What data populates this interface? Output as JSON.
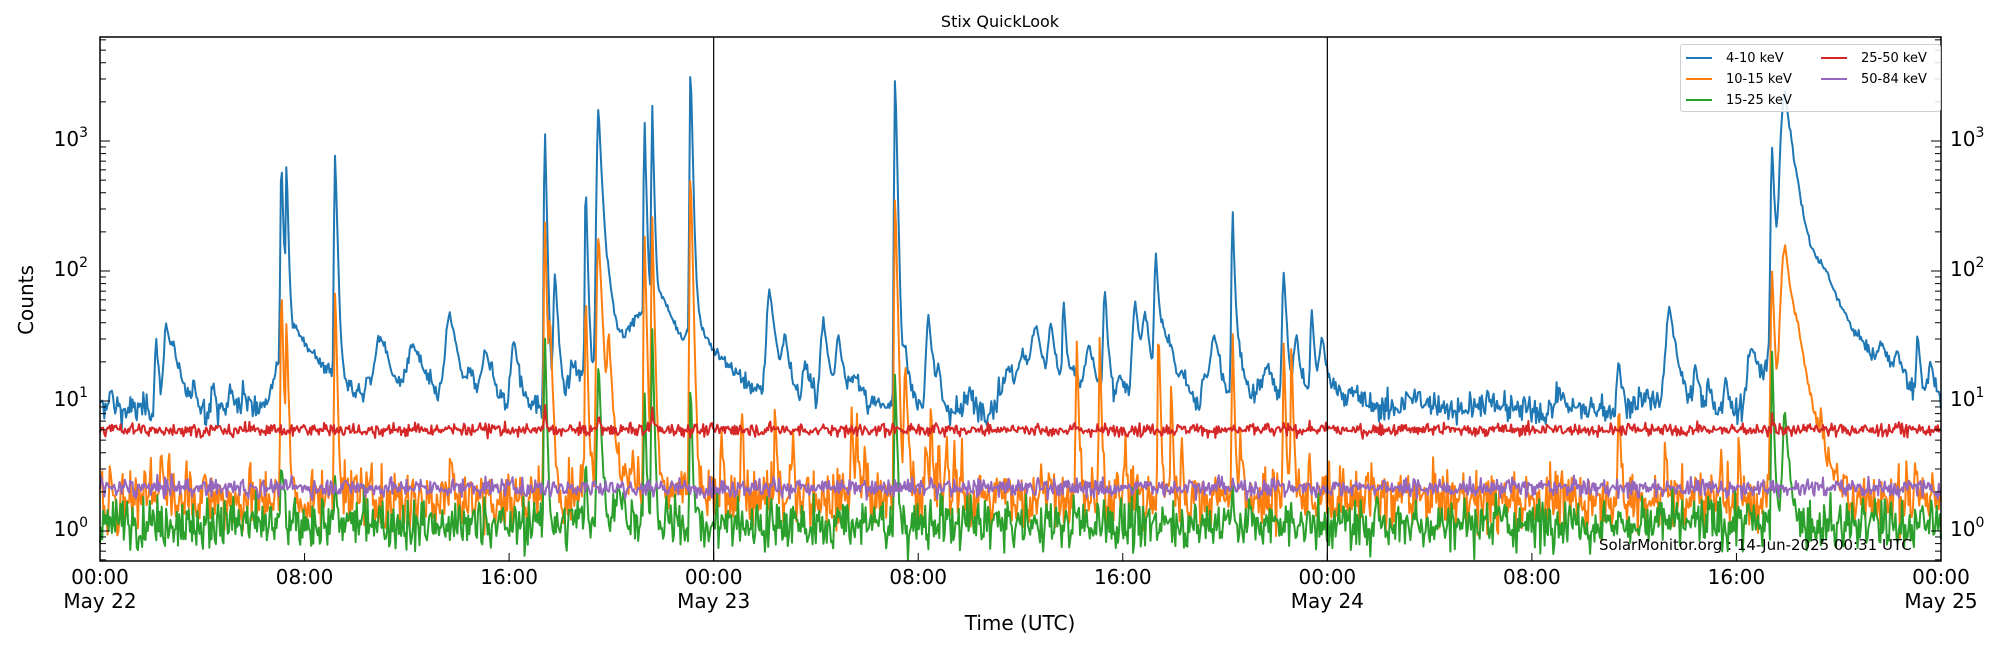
{
  "figure": {
    "title": "Stix QuickLook",
    "ylabel": "Counts",
    "xlabel": "Time (UTC)",
    "stamp": "SolarMonitor.org : 14-Jun-2025 00:31 UTC"
  },
  "yticks": [
    {
      "base": "10",
      "exp": "3",
      "value": 1000
    },
    {
      "base": "10",
      "exp": "2",
      "value": 100
    },
    {
      "base": "10",
      "exp": "1",
      "value": 10
    },
    {
      "base": "10",
      "exp": "0",
      "value": 1
    }
  ],
  "xticks": [
    {
      "time": "00:00",
      "date": "May 22",
      "hour": 0
    },
    {
      "time": "08:00",
      "date": "",
      "hour": 8
    },
    {
      "time": "16:00",
      "date": "",
      "hour": 16
    },
    {
      "time": "00:00",
      "date": "May 23",
      "hour": 24
    },
    {
      "time": "08:00",
      "date": "",
      "hour": 32
    },
    {
      "time": "16:00",
      "date": "",
      "hour": 40
    },
    {
      "time": "00:00",
      "date": "May 24",
      "hour": 48
    },
    {
      "time": "08:00",
      "date": "",
      "hour": 56
    },
    {
      "time": "16:00",
      "date": "",
      "hour": 64
    },
    {
      "time": "00:00",
      "date": "May 25",
      "hour": 72
    }
  ],
  "legend": [
    {
      "label": "4-10 keV",
      "color": "#1f77b4"
    },
    {
      "label": "10-15 keV",
      "color": "#ff7f0e"
    },
    {
      "label": "15-25 keV",
      "color": "#2ca02c"
    },
    {
      "label": "25-50 keV",
      "color": "#d62728"
    },
    {
      "label": "50-84 keV",
      "color": "#9467bd"
    }
  ],
  "chart_data": {
    "type": "line",
    "title": "Stix QuickLook",
    "xlabel": "Time (UTC)",
    "ylabel": "Counts",
    "yscale": "log",
    "ylim": [
      0.59,
      6200
    ],
    "xlim": [
      "2025-05-22 00:00",
      "2025-05-25 00:00"
    ],
    "x_tick_labels": [
      "00:00 May 22",
      "08:00",
      "16:00",
      "00:00 May 23",
      "08:00",
      "16:00",
      "00:00 May 24",
      "08:00",
      "16:00",
      "00:00 May 25"
    ],
    "y_tick_labels": [
      "10^0",
      "10^1",
      "10^2",
      "10^3"
    ],
    "day_separators_hours": [
      24,
      48
    ],
    "legend_position": "upper right",
    "grid": false,
    "series": [
      {
        "name": "4-10 keV",
        "color": "#1f77b4",
        "baseline": 8.5,
        "noise": 0.06,
        "peaks": [
          [
            0.4,
            12,
            0.15
          ],
          [
            2.2,
            30,
            0.1
          ],
          [
            2.6,
            40,
            0.15
          ],
          [
            2.9,
            22,
            0.3
          ],
          [
            3.7,
            13,
            0.1
          ],
          [
            4.4,
            13,
            0.1
          ],
          [
            5.1,
            14,
            0.1
          ],
          [
            5.6,
            13,
            0.1
          ],
          [
            7.1,
            700,
            0.06
          ],
          [
            7.3,
            650,
            0.05
          ],
          [
            7.7,
            35,
            1.1
          ],
          [
            9.2,
            800,
            0.06
          ],
          [
            10.5,
            12,
            0.2
          ],
          [
            11.0,
            30,
            0.4
          ],
          [
            12.3,
            25,
            0.5
          ],
          [
            13.7,
            45,
            0.3
          ],
          [
            14.5,
            14,
            0.2
          ],
          [
            15.1,
            25,
            0.3
          ],
          [
            16.2,
            30,
            0.2
          ],
          [
            17.4,
            1250,
            0.05
          ],
          [
            17.8,
            100,
            0.1
          ],
          [
            18.5,
            16,
            0.2
          ],
          [
            19.0,
            510,
            0.05
          ],
          [
            19.5,
            1800,
            0.1
          ],
          [
            19.9,
            60,
            0.3
          ],
          [
            20.0,
            20,
            2.0
          ],
          [
            21.3,
            1500,
            0.05
          ],
          [
            21.6,
            1800,
            0.05
          ],
          [
            21.1,
            35,
            0.8
          ],
          [
            22.0,
            50,
            0.8
          ],
          [
            23.1,
            3900,
            0.05
          ],
          [
            23.3,
            40,
            0.4
          ],
          [
            24.5,
            15,
            1.3
          ],
          [
            26.2,
            70,
            0.2
          ],
          [
            26.8,
            28,
            0.2
          ],
          [
            27.6,
            18,
            0.2
          ],
          [
            28.3,
            40,
            0.2
          ],
          [
            28.9,
            30,
            0.2
          ],
          [
            29.5,
            15,
            0.3
          ],
          [
            31.1,
            3300,
            0.05
          ],
          [
            31.5,
            25,
            0.2
          ],
          [
            32.4,
            45,
            0.15
          ],
          [
            32.8,
            17,
            0.1
          ],
          [
            34.0,
            12,
            0.2
          ],
          [
            35.2,
            12,
            0.2
          ],
          [
            35.6,
            17,
            0.4
          ],
          [
            36.1,
            22,
            0.3
          ],
          [
            36.6,
            35,
            0.3
          ],
          [
            37.2,
            35,
            0.2
          ],
          [
            37.7,
            55,
            0.1
          ],
          [
            38.1,
            17,
            0.3
          ],
          [
            38.7,
            25,
            0.3
          ],
          [
            39.3,
            70,
            0.1
          ],
          [
            39.9,
            16,
            0.2
          ],
          [
            40.5,
            55,
            0.2
          ],
          [
            40.9,
            40,
            0.2
          ],
          [
            41.3,
            130,
            0.1
          ],
          [
            41.6,
            30,
            0.3
          ],
          [
            41.9,
            18,
            0.3
          ],
          [
            42.4,
            12,
            0.2
          ],
          [
            43.2,
            15,
            0.2
          ],
          [
            43.6,
            30,
            0.3
          ],
          [
            44.3,
            270,
            0.07
          ],
          [
            44.6,
            20,
            0.3
          ],
          [
            45.3,
            12,
            0.2
          ],
          [
            45.7,
            18,
            0.3
          ],
          [
            46.3,
            100,
            0.1
          ],
          [
            46.8,
            30,
            0.2
          ],
          [
            47.4,
            50,
            0.1
          ],
          [
            47.8,
            30,
            0.2
          ],
          [
            48.3,
            12,
            0.3
          ],
          [
            49.0,
            11,
            0.6
          ],
          [
            51.5,
            10.5,
            0.8
          ],
          [
            54.2,
            9.5,
            0.8
          ],
          [
            57.1,
            11,
            0.3
          ],
          [
            59.4,
            22,
            0.1
          ],
          [
            60.5,
            11,
            0.8
          ],
          [
            61.4,
            50,
            0.25
          ],
          [
            62.4,
            20,
            0.1
          ],
          [
            62.9,
            16,
            0.1
          ],
          [
            63.6,
            15,
            0.1
          ],
          [
            64.6,
            26,
            0.3
          ],
          [
            65.4,
            900,
            0.08
          ],
          [
            65.9,
            2300,
            0.25
          ],
          [
            66.4,
            180,
            1.0
          ],
          [
            67.5,
            40,
            0.7
          ],
          [
            69.0,
            12,
            0.3
          ],
          [
            69.7,
            20,
            0.3
          ],
          [
            70.3,
            18,
            0.3
          ],
          [
            71.1,
            30,
            0.1
          ],
          [
            71.6,
            18,
            0.2
          ],
          [
            72.8,
            15,
            0.2
          ],
          [
            73.9,
            24,
            0.4
          ],
          [
            74.7,
            21,
            0.2
          ],
          [
            75.2,
            430,
            0.06
          ],
          [
            75.5,
            25,
            0.3
          ],
          [
            76.3,
            16,
            0.2
          ],
          [
            76.8,
            40,
            0.1
          ],
          [
            77.3,
            12,
            0.2
          ],
          [
            78.6,
            12,
            0.2
          ],
          [
            79.3,
            15,
            0.2
          ],
          [
            80.6,
            14,
            0.2
          ],
          [
            81.0,
            30,
            0.3
          ],
          [
            81.6,
            28,
            0.2
          ],
          [
            82.3,
            20,
            0.2
          ],
          [
            83.4,
            18,
            0.2
          ],
          [
            84.7,
            25,
            0.2
          ],
          [
            85.2,
            30,
            0.2
          ]
        ]
      },
      {
        "name": "10-15 keV",
        "color": "#ff7f0e",
        "baseline": 1.75,
        "noise": 0.12,
        "peaks": [
          [
            0.4,
            3,
            0.05
          ],
          [
            2.4,
            5,
            0.05
          ],
          [
            2.7,
            5,
            0.05
          ],
          [
            3.4,
            2.5,
            0.1
          ],
          [
            7.1,
            80,
            0.05
          ],
          [
            7.3,
            45,
            0.05
          ],
          [
            9.2,
            75,
            0.05
          ],
          [
            10.0,
            2.5,
            0.1
          ],
          [
            13.7,
            5,
            0.05
          ],
          [
            15.1,
            2.5,
            0.05
          ],
          [
            17.4,
            260,
            0.05
          ],
          [
            17.6,
            40,
            0.08
          ],
          [
            19.0,
            70,
            0.05
          ],
          [
            19.5,
            200,
            0.1
          ],
          [
            19.9,
            30,
            0.1
          ],
          [
            20.0,
            3,
            1.8
          ],
          [
            21.3,
            200,
            0.05
          ],
          [
            21.6,
            250,
            0.05
          ],
          [
            23.1,
            600,
            0.05
          ],
          [
            24.3,
            6,
            0.05
          ],
          [
            25.1,
            10,
            0.05
          ],
          [
            26.4,
            10,
            0.05
          ],
          [
            27.1,
            6,
            0.05
          ],
          [
            29.4,
            10,
            0.05
          ],
          [
            29.6,
            8,
            0.05
          ],
          [
            29.9,
            5,
            0.05
          ],
          [
            31.1,
            420,
            0.05
          ],
          [
            31.5,
            20,
            0.08
          ],
          [
            32.3,
            5,
            0.05
          ],
          [
            32.5,
            10,
            0.05
          ],
          [
            32.8,
            5,
            0.05
          ],
          [
            33.1,
            6,
            0.05
          ],
          [
            33.4,
            5,
            0.05
          ],
          [
            33.7,
            4,
            0.05
          ],
          [
            34.4,
            3,
            0.05
          ],
          [
            36.8,
            4,
            0.05
          ],
          [
            37.3,
            2.5,
            0.05
          ],
          [
            38.2,
            30,
            0.05
          ],
          [
            39.1,
            30,
            0.05
          ],
          [
            39.8,
            4,
            0.05
          ],
          [
            40.1,
            6,
            0.05
          ],
          [
            41.4,
            40,
            0.05
          ],
          [
            41.9,
            15,
            0.05
          ],
          [
            42.3,
            6,
            0.05
          ],
          [
            44.3,
            35,
            0.05
          ],
          [
            44.6,
            6,
            0.05
          ],
          [
            46.3,
            30,
            0.05
          ],
          [
            46.6,
            28,
            0.05
          ],
          [
            47.3,
            5,
            0.05
          ],
          [
            47.9,
            3,
            0.05
          ],
          [
            48.6,
            3,
            0.05
          ],
          [
            59.4,
            11,
            0.05
          ],
          [
            61.2,
            5,
            0.05
          ],
          [
            63.4,
            5,
            0.05
          ],
          [
            64.1,
            5,
            0.05
          ],
          [
            65.4,
            100,
            0.08
          ],
          [
            65.9,
            150,
            0.25
          ],
          [
            66.4,
            20,
            0.5
          ],
          [
            67.3,
            6,
            0.05
          ],
          [
            71.0,
            4,
            0.05
          ],
          [
            75.2,
            45,
            0.05
          ],
          [
            75.5,
            6,
            0.05
          ],
          [
            76.8,
            10,
            0.05
          ],
          [
            77.6,
            5,
            0.05
          ],
          [
            78.4,
            5,
            0.05
          ],
          [
            80.4,
            4,
            0.05
          ],
          [
            81.1,
            4,
            0.05
          ],
          [
            82.3,
            6,
            0.05
          ],
          [
            83.7,
            5,
            0.05
          ],
          [
            84.8,
            5,
            0.05
          ],
          [
            85.3,
            5,
            0.05
          ]
        ]
      },
      {
        "name": "15-25 keV",
        "color": "#2ca02c",
        "baseline": 1.15,
        "noise": 0.1,
        "peaks": [
          [
            7.1,
            4,
            0.05
          ],
          [
            9.2,
            3,
            0.05
          ],
          [
            17.4,
            35,
            0.05
          ],
          [
            19.0,
            4,
            0.05
          ],
          [
            19.5,
            20,
            0.08
          ],
          [
            20.3,
            2,
            0.3
          ],
          [
            21.3,
            12,
            0.05
          ],
          [
            21.6,
            35,
            0.05
          ],
          [
            23.1,
            15,
            0.05
          ],
          [
            31.1,
            18,
            0.05
          ],
          [
            44.3,
            2.5,
            0.05
          ],
          [
            65.4,
            25,
            0.05
          ],
          [
            65.9,
            8,
            0.15
          ],
          [
            75.2,
            10,
            0.05
          ]
        ]
      },
      {
        "name": "25-50 keV",
        "color": "#d62728",
        "baseline": 6.0,
        "noise": 0.025,
        "peaks": [
          [
            17.4,
            9,
            0.05
          ],
          [
            19.5,
            8,
            0.05
          ],
          [
            21.6,
            9,
            0.05
          ],
          [
            65.4,
            8,
            0.05
          ]
        ]
      },
      {
        "name": "50-84 keV",
        "color": "#9467bd",
        "baseline": 2.15,
        "noise": 0.035,
        "peaks": []
      }
    ]
  }
}
